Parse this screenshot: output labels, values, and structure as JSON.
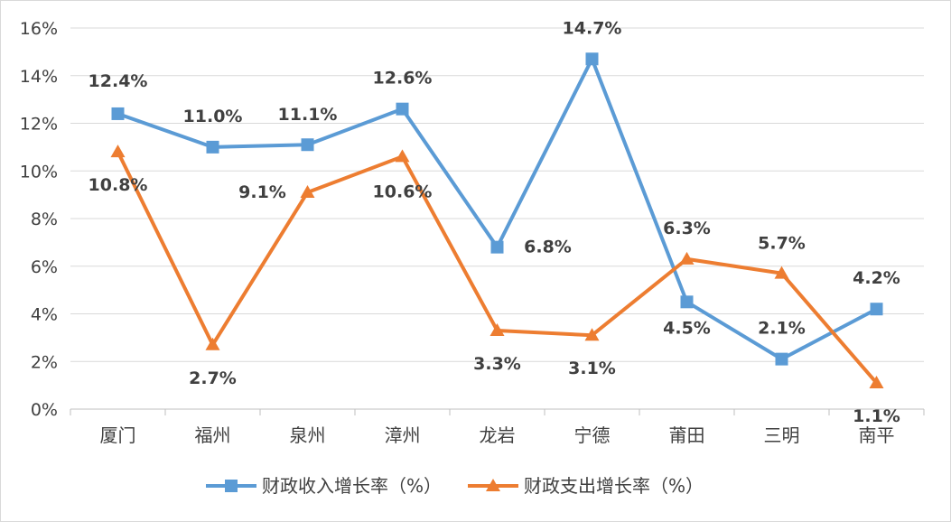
{
  "chart_data": {
    "type": "line",
    "title": "",
    "xlabel": "",
    "ylabel": "",
    "categories": [
      "厦门",
      "福州",
      "泉州",
      "漳州",
      "龙岩",
      "宁德",
      "莆田",
      "三明",
      "南平"
    ],
    "series": [
      {
        "name": "财政收入增长率（%）",
        "color": "#5b9bd5",
        "marker": "square",
        "values": [
          12.4,
          11.0,
          11.1,
          12.6,
          6.8,
          14.7,
          4.5,
          2.1,
          4.2
        ],
        "labels": [
          "12.4%",
          "11.0%",
          "11.1%",
          "12.6%",
          "6.8%",
          "14.7%",
          "4.5%",
          "2.1%",
          "4.2%"
        ]
      },
      {
        "name": "财政支出增长率（%）",
        "color": "#ed7d31",
        "marker": "triangle",
        "values": [
          10.8,
          2.7,
          9.1,
          10.6,
          3.3,
          3.1,
          6.3,
          5.7,
          1.1
        ],
        "labels": [
          "10.8%",
          "2.7%",
          "9.1%",
          "10.6%",
          "3.3%",
          "3.1%",
          "6.3%",
          "5.7%",
          "1.1%"
        ]
      }
    ],
    "ylim": [
      0,
      16
    ],
    "yticks": [
      0,
      2,
      4,
      6,
      8,
      10,
      12,
      14,
      16
    ],
    "ytick_labels": [
      "0%",
      "2%",
      "4%",
      "6%",
      "8%",
      "10%",
      "12%",
      "14%",
      "16%"
    ],
    "grid": true,
    "legend": "bottom"
  }
}
